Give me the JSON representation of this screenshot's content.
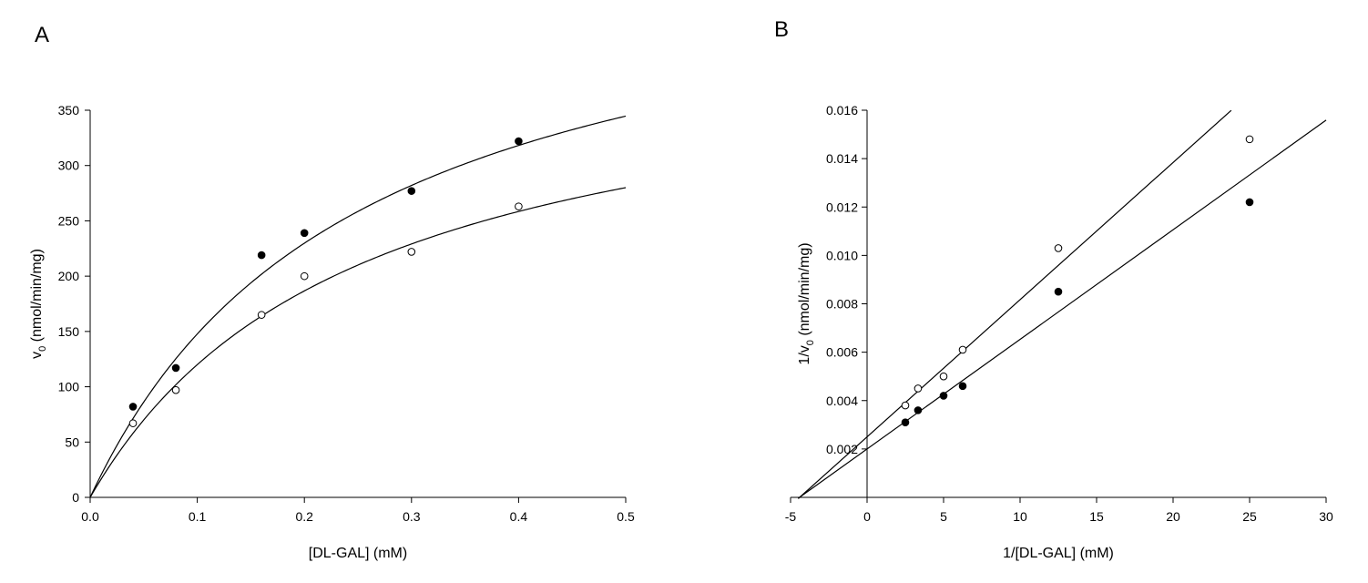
{
  "chart_data": [
    {
      "type": "scatter",
      "panel_label": "A",
      "xlabel": "[DL-GAL] (mM)",
      "ylabel": "v",
      "ylabel_sub": "0",
      "ylabel_rest": " (nmol/min/mg)",
      "xlim": [
        0,
        0.5
      ],
      "ylim": [
        0,
        350
      ],
      "xticks": [
        "0.0",
        "0.1",
        "0.2",
        "0.3",
        "0.4",
        "0.5"
      ],
      "yticks": [
        "0",
        "50",
        "100",
        "150",
        "200",
        "250",
        "300",
        "350"
      ],
      "grid": false,
      "series": [
        {
          "name": "filled",
          "marker": "filled-circle",
          "x": [
            0.04,
            0.08,
            0.16,
            0.2,
            0.3,
            0.4
          ],
          "y": [
            82,
            117,
            219,
            239,
            277,
            322
          ],
          "fit": {
            "model": "michaelis-menten",
            "Vmax": 517,
            "Km": 0.25
          }
        },
        {
          "name": "open",
          "marker": "open-circle",
          "x": [
            0.04,
            0.08,
            0.16,
            0.2,
            0.3,
            0.4
          ],
          "y": [
            67,
            97,
            165,
            200,
            222,
            263
          ],
          "fit": {
            "model": "michaelis-menten",
            "Vmax": 420,
            "Km": 0.25
          }
        }
      ]
    },
    {
      "type": "scatter",
      "panel_label": "B",
      "xlabel": "1/[DL-GAL] (mM)",
      "ylabel": "1/v",
      "ylabel_sub": "0",
      "ylabel_rest": " (nmol/min/mg)",
      "xlim": [
        -5,
        30
      ],
      "ylim": [
        0,
        0.016
      ],
      "xticks": [
        "-5",
        "0",
        "5",
        "10",
        "15",
        "20",
        "25",
        "30"
      ],
      "yticks": [
        "0.002",
        "0.004",
        "0.006",
        "0.008",
        "0.010",
        "0.012",
        "0.014",
        "0.016"
      ],
      "grid": false,
      "series": [
        {
          "name": "filled",
          "marker": "filled-circle",
          "x": [
            2.5,
            3.33,
            5,
            6.25,
            12.5,
            25
          ],
          "y": [
            0.0031,
            0.0036,
            0.0042,
            0.0046,
            0.0085,
            0.0122
          ],
          "fit": {
            "model": "linear",
            "slope": 0.000453,
            "intercept": 0.002,
            "x_range": [
              -4.5,
              30
            ]
          }
        },
        {
          "name": "open",
          "marker": "open-circle",
          "x": [
            2.5,
            3.33,
            5,
            6.25,
            12.5,
            25
          ],
          "y": [
            0.0038,
            0.0045,
            0.005,
            0.0061,
            0.0103,
            0.0148
          ],
          "fit": {
            "model": "linear",
            "slope": 0.000567,
            "intercept": 0.0025,
            "x_range": [
              -4.5,
              23.8
            ]
          }
        }
      ]
    }
  ]
}
